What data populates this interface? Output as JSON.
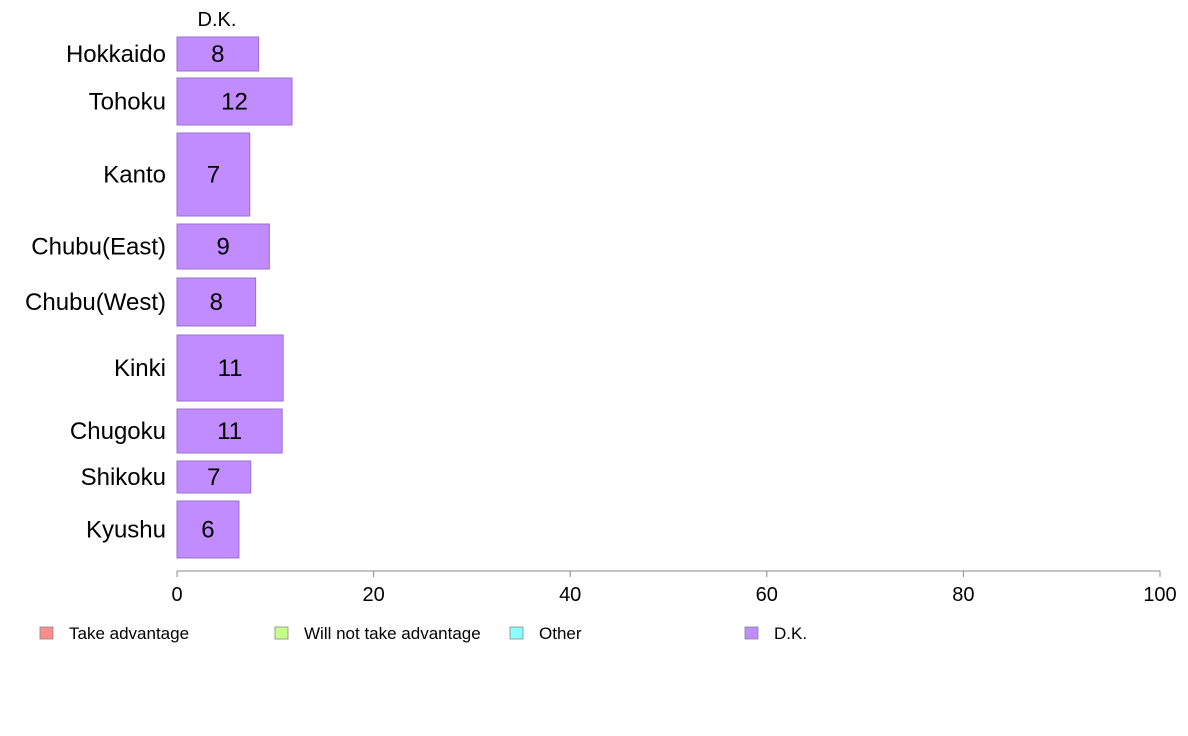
{
  "chart_data": {
    "type": "bar",
    "orientation": "horizontal",
    "stacked": true,
    "column_header": "D.K.",
    "categories": [
      "Hokkaido",
      "Tohoku",
      "Kanto",
      "Chubu(East)",
      "Chubu(West)",
      "Kinki",
      "Chugoku",
      "Shikoku",
      "Kyushu"
    ],
    "series": [
      {
        "name": "Take advantage",
        "color": "#ff8c8c",
        "values": [
          0,
          0,
          0,
          0,
          0,
          0,
          0,
          0,
          0
        ]
      },
      {
        "name": "Will not take advantage",
        "color": "#c6ff8c",
        "values": [
          0,
          0,
          0,
          0,
          0,
          0,
          0,
          0,
          0
        ]
      },
      {
        "name": "Other",
        "color": "#8cffff",
        "values": [
          0,
          0,
          0,
          0,
          0,
          0,
          0,
          0,
          0
        ]
      },
      {
        "name": "D.K.",
        "color": "#c08cff",
        "values": [
          8.3,
          11.7,
          7.4,
          9.4,
          8.0,
          10.8,
          10.7,
          7.5,
          6.3
        ]
      }
    ],
    "data_labels": [
      "8",
      "12",
      "7",
      "9",
      "8",
      "11",
      "11",
      "7",
      "6"
    ],
    "xlim": [
      0,
      100
    ],
    "x_ticks": [
      0,
      20,
      40,
      60,
      80,
      100
    ],
    "title": "",
    "xlabel": "",
    "ylabel": "",
    "legend_position": "bottom",
    "grid": false
  }
}
